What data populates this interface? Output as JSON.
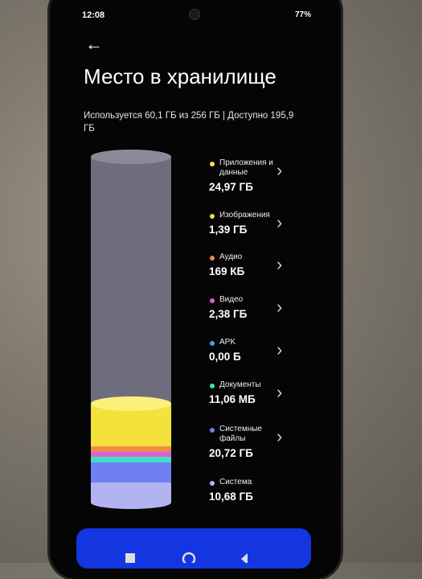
{
  "status_bar": {
    "time": "12:08",
    "battery": "77%"
  },
  "header": {
    "title": "Место в хранилище",
    "subtitle": "Используется 60,1 ГБ из 256 ГБ | Доступно 195,9 ГБ"
  },
  "items": [
    {
      "name": "Приложения и данные",
      "size": "24,97 ГБ",
      "color": "#f4e13a"
    },
    {
      "name": "Изображения",
      "size": "1,39 ГБ",
      "color": "#efe13c"
    },
    {
      "name": "Аудио",
      "size": "169 КБ",
      "color": "#f08a4b"
    },
    {
      "name": "Видео",
      "size": "2,38 ГБ",
      "color": "#e05fd2"
    },
    {
      "name": "APK",
      "size": "0,00 Б",
      "color": "#3fa2f2"
    },
    {
      "name": "Документы",
      "size": "11,06 МБ",
      "color": "#3fe0c6"
    },
    {
      "name": "Системные файлы",
      "size": "20,72 ГБ",
      "color": "#6f80f2"
    },
    {
      "name": "Система",
      "size": "10,68 ГБ",
      "color": "#b3b3f2"
    }
  ]
}
